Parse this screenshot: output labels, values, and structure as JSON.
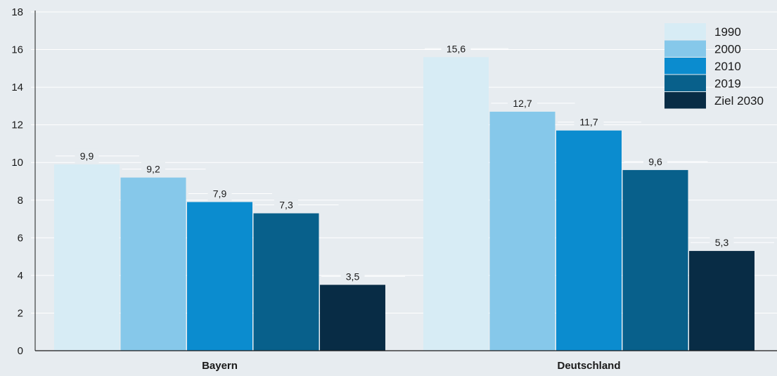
{
  "chart_data": {
    "type": "bar",
    "title": "",
    "xlabel": "",
    "ylabel": "",
    "ylim": [
      0,
      18
    ],
    "yticks": [
      0,
      2,
      4,
      6,
      8,
      10,
      12,
      14,
      16,
      18
    ],
    "categories": [
      "Bayern",
      "Deutschland"
    ],
    "series": [
      {
        "name": "1990",
        "color": "#d7ecf5",
        "values": [
          9.9,
          15.6
        ],
        "labels": [
          "9,9",
          "15,6"
        ]
      },
      {
        "name": "2000",
        "color": "#86c8ea",
        "values": [
          9.2,
          12.7
        ],
        "labels": [
          "9,2",
          "12,7"
        ]
      },
      {
        "name": "2010",
        "color": "#0b8ccf",
        "values": [
          7.9,
          11.7
        ],
        "labels": [
          "7,9",
          "11,7"
        ]
      },
      {
        "name": "2019",
        "color": "#08608b",
        "values": [
          7.3,
          9.6
        ],
        "labels": [
          "7,3",
          "9,6"
        ]
      },
      {
        "name": "Ziel 2030",
        "color": "#082c45",
        "values": [
          3.5,
          5.3
        ],
        "labels": [
          "3,5",
          "5,3"
        ]
      }
    ],
    "grid": true,
    "legend_position": "top-right"
  }
}
